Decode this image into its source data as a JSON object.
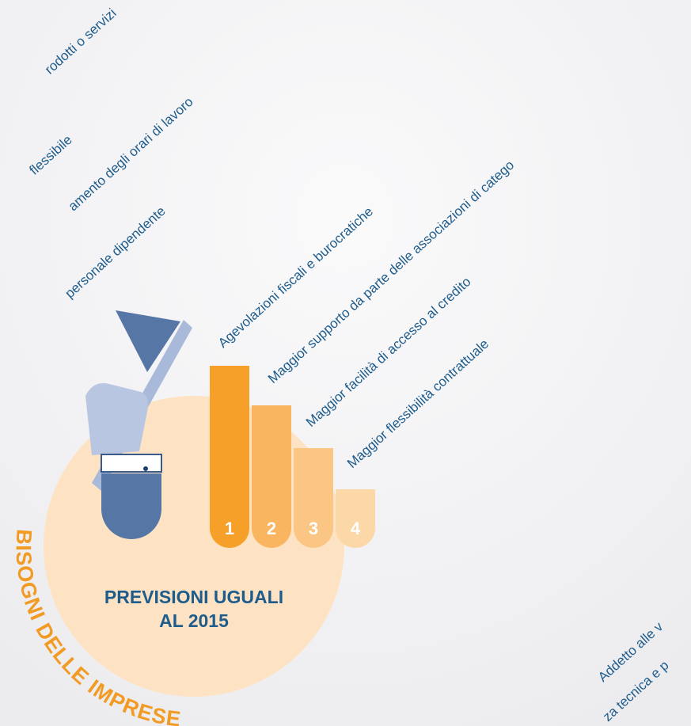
{
  "left_labels": [
    "rodotti o servizi",
    "flessibile",
    "amento degli orari di lavoro",
    "personale dipendente"
  ],
  "needs": [
    "Agevolazioni fiscali e burocratiche",
    "Maggior supporto da parte delle associazioni di catego",
    "Maggior facilità di accesso al credito",
    "Maggior flessibilità contrattuale"
  ],
  "ranks": [
    "1",
    "2",
    "3",
    "4"
  ],
  "title_lines": [
    "PREVISIONI UGUALI",
    "AL 2015"
  ],
  "arc_title": "BISOGNI DELLE IMPRESE",
  "right_labels": [
    "Addetto alle v",
    "za tecnica e p"
  ]
}
